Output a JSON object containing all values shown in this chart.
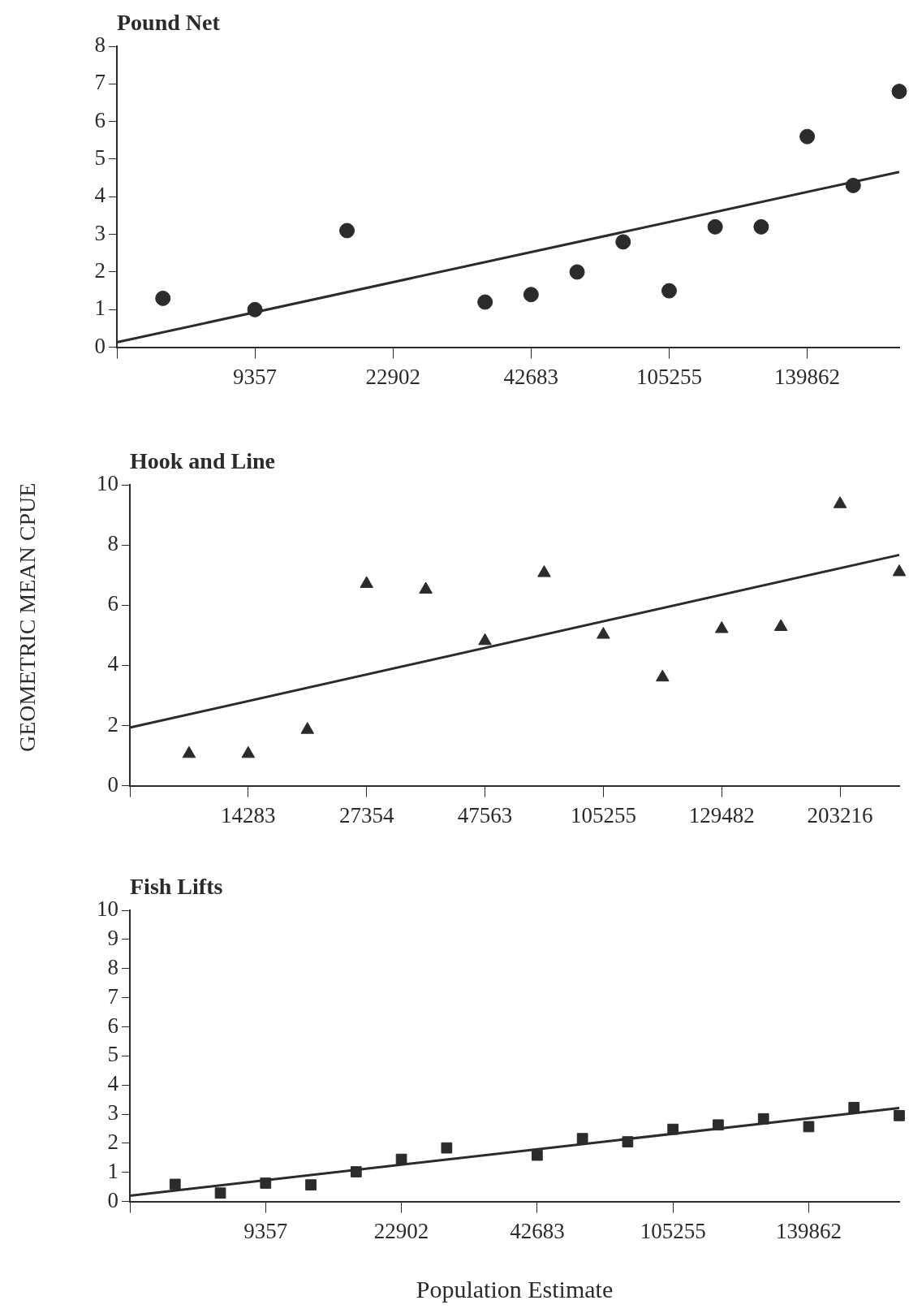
{
  "chart_data": [
    {
      "type": "scatter",
      "title": "Pound Net",
      "ylabel": "GEOMETRIC MEAN CPUE",
      "grid": false,
      "categories": [
        null,
        null,
        null,
        "9357",
        null,
        null,
        "22902",
        null,
        null,
        "42683",
        null,
        null,
        "105255",
        null,
        null,
        "139862",
        null,
        null
      ],
      "ylim": [
        0,
        8
      ],
      "yticks": [
        0,
        1,
        2,
        3,
        4,
        5,
        6,
        7,
        8
      ],
      "series": [
        {
          "marker": "circle",
          "color": "#2b2b2b",
          "values": [
            null,
            1.3,
            null,
            1.0,
            null,
            3.1,
            null,
            null,
            1.2,
            1.4,
            2.0,
            2.8,
            1.5,
            3.2,
            3.2,
            5.6,
            4.3,
            6.8
          ]
        },
        {
          "type": "line",
          "color": "#2b2b2b",
          "values": [
            0.13,
            null,
            null,
            null,
            null,
            null,
            null,
            null,
            null,
            null,
            null,
            null,
            null,
            null,
            null,
            null,
            null,
            4.66
          ]
        }
      ]
    },
    {
      "type": "scatter",
      "title": "Hook and Line",
      "grid": false,
      "categories": [
        null,
        null,
        "14283",
        null,
        "27354",
        null,
        "47563",
        null,
        "105255",
        null,
        "129482",
        null,
        "203216",
        null
      ],
      "ylim": [
        0,
        10
      ],
      "yticks": [
        0,
        2,
        4,
        6,
        8,
        10
      ],
      "series": [
        {
          "marker": "triangle",
          "color": "#2b2b2b",
          "values": [
            null,
            1.06,
            1.06,
            1.86,
            6.71,
            6.52,
            4.81,
            7.07,
            5.02,
            3.6,
            5.21,
            5.28,
            9.36,
            7.1
          ]
        },
        {
          "type": "line",
          "color": "#2b2b2b",
          "values": [
            1.93,
            null,
            null,
            null,
            null,
            null,
            null,
            null,
            null,
            null,
            null,
            null,
            null,
            7.67
          ]
        }
      ]
    },
    {
      "type": "scatter",
      "title": "Fish Lifts",
      "xlabel": "Population Estimate",
      "grid": false,
      "categories": [
        null,
        null,
        null,
        "9357",
        null,
        null,
        "22902",
        null,
        null,
        "42683",
        null,
        null,
        "105255",
        null,
        null,
        "139862",
        null,
        null
      ],
      "ylim": [
        0,
        10
      ],
      "yticks": [
        0,
        1,
        2,
        3,
        4,
        5,
        6,
        7,
        8,
        9,
        10
      ],
      "series": [
        {
          "marker": "square",
          "color": "#2b2b2b",
          "values": [
            null,
            0.59,
            0.29,
            0.63,
            0.57,
            1.02,
            1.45,
            1.84,
            null,
            1.59,
            2.16,
            2.05,
            2.48,
            2.63,
            2.84,
            2.57,
            3.23,
            2.95
          ]
        },
        {
          "type": "line",
          "color": "#2b2b2b",
          "values": [
            0.2,
            null,
            null,
            null,
            null,
            null,
            null,
            null,
            null,
            null,
            null,
            null,
            null,
            null,
            null,
            null,
            null,
            3.21
          ]
        }
      ]
    }
  ]
}
